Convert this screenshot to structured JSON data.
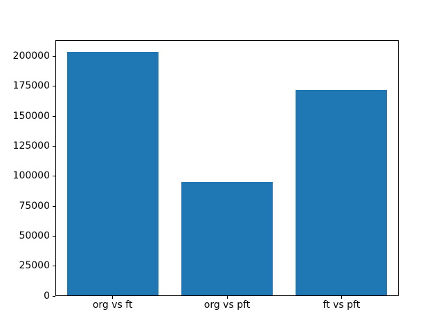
{
  "chart_data": {
    "type": "bar",
    "title": "",
    "xlabel": "",
    "ylabel": "",
    "categories": [
      "org vs ft",
      "org vs pft",
      "ft vs pft"
    ],
    "values": [
      204000,
      95000,
      172500
    ],
    "yticks": [
      0,
      25000,
      50000,
      75000,
      100000,
      125000,
      150000,
      175000,
      200000
    ],
    "ylim": [
      0,
      213500
    ],
    "bar_width_fraction": 0.8,
    "grid": false,
    "legend_position": "none",
    "bar_color": "#1f77b4"
  },
  "colors": {
    "background": "#ffffff",
    "spine": "#000000",
    "tick_text": "#000000"
  }
}
